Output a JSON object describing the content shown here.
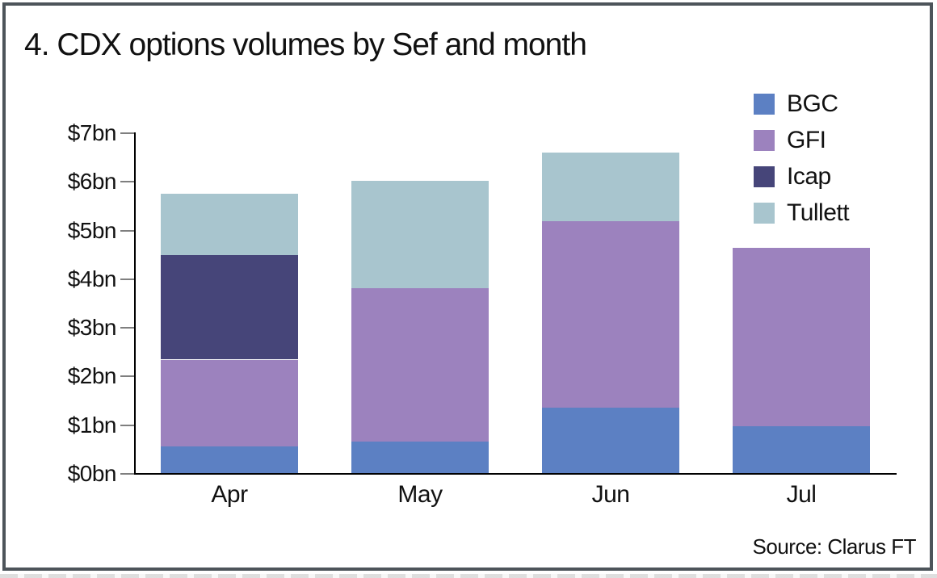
{
  "title": "4. CDX options volumes by Sef and month",
  "source": "Source: Clarus FT",
  "colors": {
    "frame_border": "#4d545a",
    "background": "#ffffff",
    "axis": "#000000",
    "tick": "#7f7f7f",
    "text": "#111111",
    "bgc": "#5c80c3",
    "gfi": "#9c82be",
    "icap": "#464579",
    "tullett": "#a8c5ce"
  },
  "legend": {
    "position": "top-right",
    "items": [
      {
        "label": "BGC",
        "color": "#5c80c3"
      },
      {
        "label": "GFI",
        "color": "#9c82be"
      },
      {
        "label": "Icap",
        "color": "#464579"
      },
      {
        "label": "Tullett",
        "color": "#a8c5ce"
      }
    ]
  },
  "chart_data": {
    "type": "bar",
    "stacked": true,
    "title": "4. CDX options volumes by Sef and month",
    "categories": [
      "Apr",
      "May",
      "Jun",
      "Jul"
    ],
    "series": [
      {
        "name": "BGC",
        "color": "#5c80c3",
        "values": [
          0.55,
          0.65,
          1.35,
          0.97
        ]
      },
      {
        "name": "GFI",
        "color": "#9c82be",
        "values": [
          1.78,
          3.15,
          3.82,
          3.65
        ]
      },
      {
        "name": "Icap",
        "color": "#464579",
        "values": [
          2.15,
          0.0,
          0.0,
          0.0
        ]
      },
      {
        "name": "Tullett",
        "color": "#a8c5ce",
        "values": [
          1.25,
          2.2,
          1.41,
          0.0
        ]
      }
    ],
    "totals": [
      5.73,
      6.0,
      6.58,
      4.62
    ],
    "xlabel": "",
    "ylabel": "",
    "ylim": [
      0,
      7
    ],
    "yticks": [
      "$0bn",
      "$1bn",
      "$2bn",
      "$3bn",
      "$4bn",
      "$5bn",
      "$6bn",
      "$7bn"
    ],
    "grid": false,
    "legend_position": "top-right"
  }
}
